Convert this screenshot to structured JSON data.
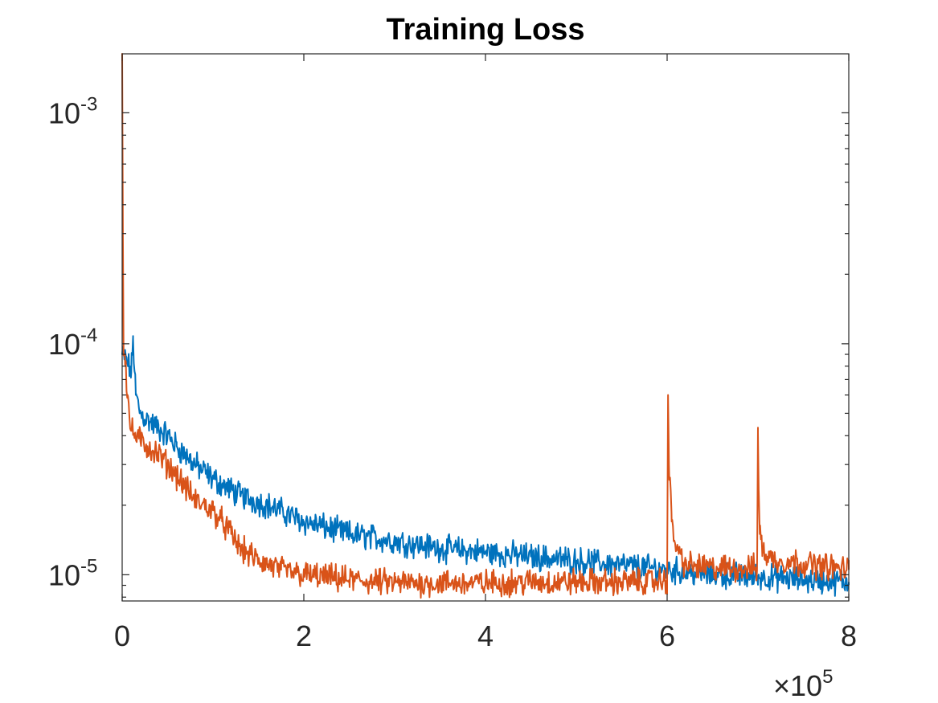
{
  "chart_data": {
    "type": "line",
    "title": "Training Loss",
    "xlabel": "",
    "ylabel": "",
    "x_multiplier_label": "×10",
    "x_multiplier_exponent": "5",
    "xlim": [
      0,
      800000
    ],
    "ylim": [
      7.7e-06,
      0.0018
    ],
    "y_scale": "log",
    "grid": false,
    "legend": "none",
    "x_ticks": [
      {
        "value": 0,
        "label": "0"
      },
      {
        "value": 200000,
        "label": "2"
      },
      {
        "value": 400000,
        "label": "4"
      },
      {
        "value": 600000,
        "label": "6"
      },
      {
        "value": 800000,
        "label": "8"
      }
    ],
    "y_ticks": [
      {
        "value": 1e-05,
        "base": "10",
        "exponent": "-5"
      },
      {
        "value": 0.0001,
        "base": "10",
        "exponent": "-4"
      },
      {
        "value": 0.001,
        "base": "10",
        "exponent": "-3"
      }
    ],
    "series": [
      {
        "color": "#0072BD",
        "x": [
          0,
          5000,
          10000,
          12000,
          15000,
          20000,
          30000,
          40000,
          50000,
          60000,
          80000,
          100000,
          130000,
          160000,
          200000,
          250000,
          300000,
          350000,
          400000,
          450000,
          500000,
          550000,
          600000,
          650000,
          700000,
          750000,
          800000
        ],
        "values": [
          9e-05,
          8.5e-05,
          7.5e-05,
          0.000105,
          6e-05,
          5e-05,
          4.6e-05,
          4.3e-05,
          4e-05,
          3.6e-05,
          3e-05,
          2.6e-05,
          2.2e-05,
          2e-05,
          1.7e-05,
          1.5e-05,
          1.4e-05,
          1.3e-05,
          1.25e-05,
          1.2e-05,
          1.15e-05,
          1.1e-05,
          1.05e-05,
          1e-05,
          9.8e-06,
          9.5e-06,
          9.3e-06
        ]
      },
      {
        "color": "#D95319",
        "x": [
          0,
          800,
          1500,
          3000,
          6000,
          8000,
          10000,
          20000,
          40000,
          60000,
          80000,
          100000,
          110000,
          120000,
          130000,
          150000,
          175000,
          200000,
          250000,
          300000,
          350000,
          400000,
          450000,
          500000,
          550000,
          599000,
          600000,
          601000,
          602000,
          605000,
          610000,
          620000,
          650000,
          698000,
          699000,
          700000,
          701000,
          702000,
          705000,
          710000,
          720000,
          750000,
          800000
        ],
        "values": [
          0.0018,
          0.0003,
          0.0001,
          9e-05,
          6e-05,
          4.8e-05,
          4.2e-05,
          3.8e-05,
          3.3e-05,
          2.7e-05,
          2.1e-05,
          1.9e-05,
          1.7e-05,
          1.5e-05,
          1.3e-05,
          1.15e-05,
          1.05e-05,
          1e-05,
          9.5e-06,
          9.2e-06,
          9.2e-06,
          9.2e-06,
          9.3e-06,
          9.3e-06,
          9.3e-06,
          9.4e-06,
          9.4e-06,
          6e-05,
          3e-05,
          1.7e-05,
          1.3e-05,
          1.1e-05,
          1.07e-05,
          1.07e-05,
          1.05e-05,
          4.1e-05,
          2.2e-05,
          1.5e-05,
          1.3e-05,
          1.2e-05,
          1.15e-05,
          1.12e-05,
          1.05e-05
        ]
      }
    ]
  }
}
